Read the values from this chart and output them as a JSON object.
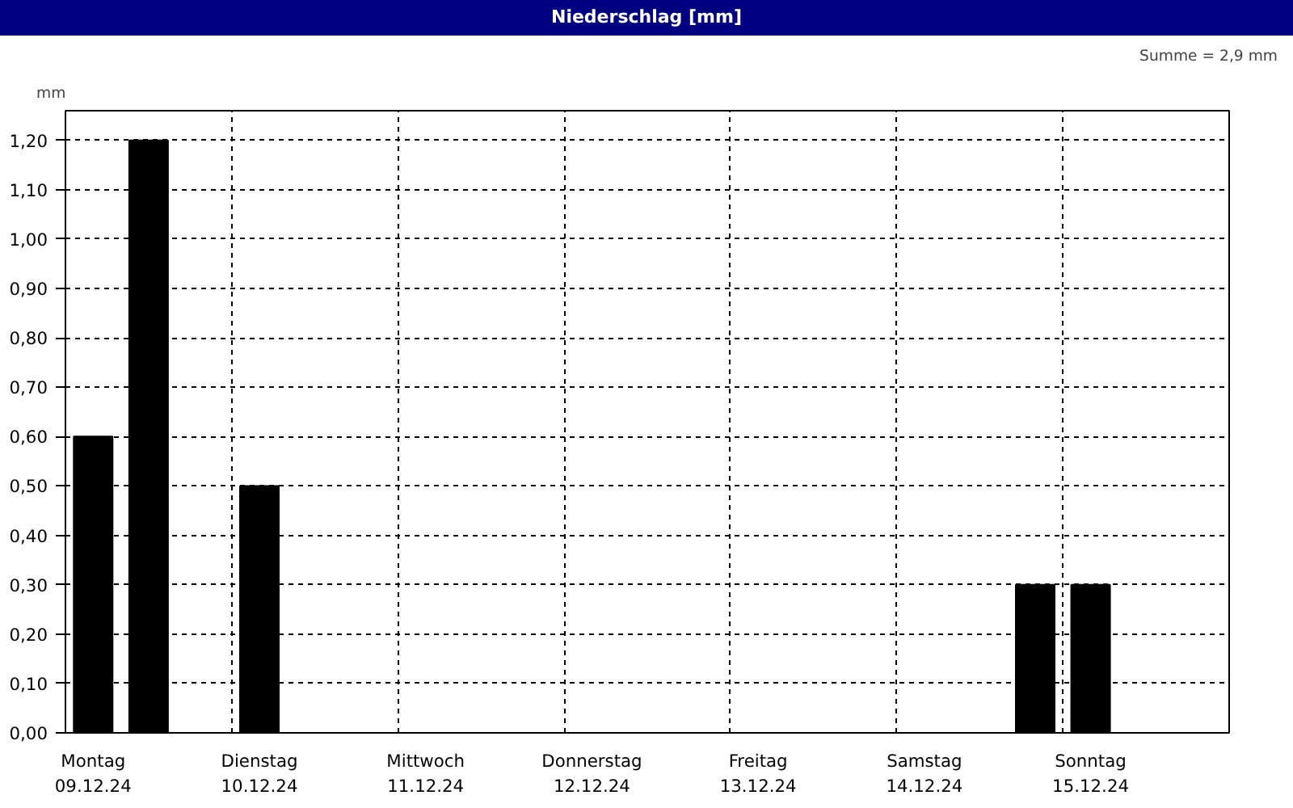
{
  "chart_data": {
    "type": "bar",
    "title": "Niederschlag [mm]",
    "ylabel": "mm",
    "annotations": [
      "Summe = 2,9 mm"
    ],
    "categories": [
      "Montag\n09.12.24",
      null,
      null,
      "Dienstag\n10.12.24",
      null,
      null,
      "Mittwoch\n11.12.24",
      null,
      null,
      "Donnerstag\n12.12.24",
      null,
      null,
      "Freitag\n13.12.24",
      null,
      null,
      "Samstag\n14.12.24",
      null,
      null,
      "Sonntag\n15.12.24",
      null,
      null
    ],
    "values": [
      0.6,
      1.2,
      null,
      0.5,
      null,
      null,
      null,
      null,
      null,
      null,
      null,
      null,
      null,
      null,
      null,
      null,
      null,
      0.3,
      0.3,
      null,
      null
    ],
    "color": "#000000",
    "ylim": [
      0,
      1.26
    ],
    "yticks": [
      {
        "value": 0,
        "label": "0,00"
      },
      {
        "value": 0.1,
        "label": "0,10"
      },
      {
        "value": 0.2,
        "label": "0,20"
      },
      {
        "value": 0.3,
        "label": "0,30"
      },
      {
        "value": 0.4,
        "label": "0,40"
      },
      {
        "value": 0.5,
        "label": "0,50"
      },
      {
        "value": 0.6,
        "label": "0,60"
      },
      {
        "value": 0.7,
        "label": "0,70"
      },
      {
        "value": 0.8,
        "label": "0,80"
      },
      {
        "value": 0.9,
        "label": "0,90"
      },
      {
        "value": 1.0,
        "label": "1,00"
      },
      {
        "value": 1.1,
        "label": "1,10"
      },
      {
        "value": 1.2,
        "label": "1,20"
      }
    ],
    "grid": true
  }
}
